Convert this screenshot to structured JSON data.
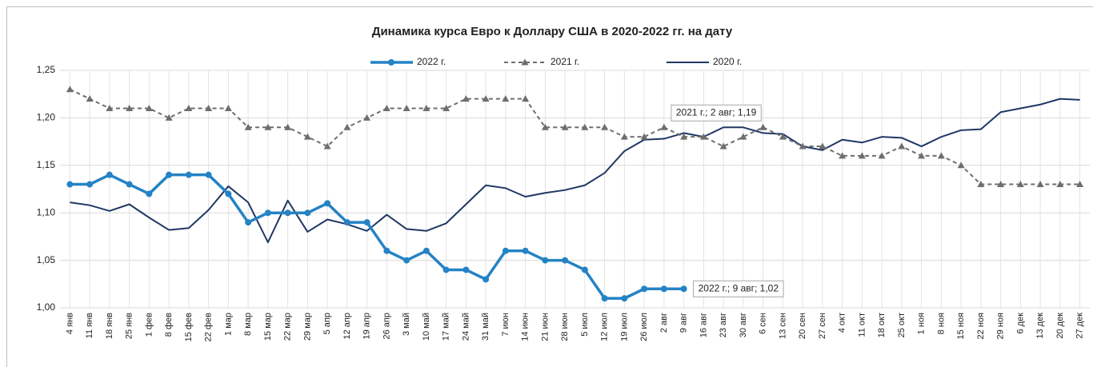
{
  "chart_data": {
    "type": "line",
    "title": "Динамика курса Евро к Доллару США в 2020-2022 гг. на дату",
    "categories": [
      "4 янв",
      "11 янв",
      "18 янв",
      "25 янв",
      "1 фев",
      "8 фев",
      "15 фев",
      "22 фев",
      "1 мар",
      "8 мар",
      "15 мар",
      "22 мар",
      "29 мар",
      "5 апр",
      "12 апр",
      "19 апр",
      "26 апр",
      "3 май",
      "10 май",
      "17 май",
      "24 май",
      "31 май",
      "7 июн",
      "14 июн",
      "21 июн",
      "28 июн",
      "5 июл",
      "12 июл",
      "19 июл",
      "26 июл",
      "2 авг",
      "9 авг",
      "16 авг",
      "23 авг",
      "30 авг",
      "6 сен",
      "13 сен",
      "20 сен",
      "27 сен",
      "4 окт",
      "11 окт",
      "18 окт",
      "25 окт",
      "1 ноя",
      "8 ноя",
      "15 ноя",
      "22 ноя",
      "29 ноя",
      "6 дек",
      "13 дек",
      "20 дек",
      "27 дек"
    ],
    "series": [
      {
        "name": "2022 г.",
        "color": "#2483c5",
        "values": [
          1.13,
          1.13,
          1.14,
          1.13,
          1.12,
          1.14,
          1.14,
          1.14,
          1.12,
          1.09,
          1.1,
          1.1,
          1.1,
          1.11,
          1.09,
          1.09,
          1.06,
          1.05,
          1.06,
          1.04,
          1.04,
          1.03,
          1.06,
          1.06,
          1.05,
          1.05,
          1.04,
          1.01,
          1.01,
          1.02,
          1.02,
          1.02,
          null,
          null,
          null,
          null,
          null,
          null,
          null,
          null,
          null,
          null,
          null,
          null,
          null,
          null,
          null,
          null,
          null,
          null,
          null,
          null
        ]
      },
      {
        "name": "2021 г.",
        "color": "#6e6e6e",
        "values": [
          1.23,
          1.22,
          1.21,
          1.21,
          1.21,
          1.2,
          1.21,
          1.21,
          1.21,
          1.19,
          1.19,
          1.19,
          1.18,
          1.17,
          1.19,
          1.2,
          1.21,
          1.21,
          1.21,
          1.21,
          1.22,
          1.22,
          1.22,
          1.22,
          1.19,
          1.19,
          1.19,
          1.19,
          1.18,
          1.18,
          1.19,
          1.18,
          1.18,
          1.17,
          1.18,
          1.19,
          1.18,
          1.17,
          1.17,
          1.16,
          1.16,
          1.16,
          1.17,
          1.16,
          1.16,
          1.15,
          1.13,
          1.13,
          1.13,
          1.13,
          1.13,
          1.13
        ]
      },
      {
        "name": "2020 г.",
        "color": "#1f3864",
        "values": [
          1.111,
          1.108,
          1.102,
          1.109,
          1.095,
          1.082,
          1.084,
          1.103,
          1.128,
          1.111,
          1.069,
          1.113,
          1.08,
          1.093,
          1.088,
          1.081,
          1.098,
          1.083,
          1.081,
          1.089,
          1.109,
          1.129,
          1.126,
          1.117,
          1.121,
          1.124,
          1.129,
          1.142,
          1.165,
          1.177,
          1.178,
          1.184,
          1.18,
          1.19,
          1.19,
          1.184,
          1.183,
          1.17,
          1.166,
          1.177,
          1.174,
          1.18,
          1.179,
          1.17,
          1.18,
          1.187,
          1.188,
          1.206,
          1.21,
          1.214,
          1.22,
          1.219
        ]
      }
    ],
    "annotations": [
      {
        "text": "2021 г.; 2 авг; 1,19",
        "series": 1,
        "index": 30
      },
      {
        "text": "2022 г.; 9 авг; 1,02",
        "series": 0,
        "index": 31
      }
    ],
    "ylim": [
      1.0,
      1.25
    ],
    "yticks": [
      {
        "value": 1.0,
        "label": "1,00"
      },
      {
        "value": 1.05,
        "label": "1,05"
      },
      {
        "value": 1.1,
        "label": "1,10"
      },
      {
        "value": 1.15,
        "label": "1,15"
      },
      {
        "value": 1.2,
        "label": "1,20"
      },
      {
        "value": 1.25,
        "label": "1,25"
      }
    ],
    "grid": true,
    "legend": "top"
  }
}
